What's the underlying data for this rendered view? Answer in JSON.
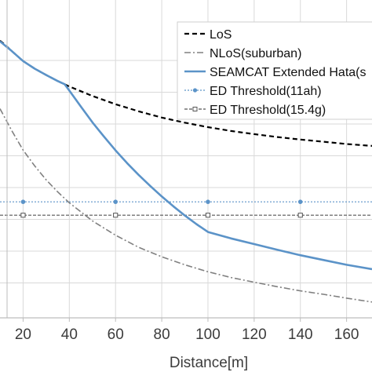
{
  "chart_data": {
    "type": "line",
    "xlabel": "Distance[m]",
    "x_ticks": [
      20,
      40,
      60,
      80,
      100,
      120,
      140,
      160
    ],
    "xlim": [
      10,
      171
    ],
    "ylim": [
      0,
      10
    ],
    "y_gridlines": [
      1.1,
      2.1,
      3.1,
      4.1,
      5.1,
      6.1,
      7.1,
      8.1
    ],
    "grid": true,
    "legend_position": "top-right",
    "series": [
      {
        "name": "LoS",
        "style": "dashed",
        "color": "#000000",
        "x": [
          10,
          12,
          15,
          20,
          25,
          30,
          35,
          40,
          50,
          60,
          70,
          80,
          90,
          100,
          110,
          120,
          130,
          140,
          150,
          160,
          171
        ],
        "y": [
          8.72,
          8.6,
          8.4,
          8.08,
          7.84,
          7.64,
          7.45,
          7.28,
          6.98,
          6.72,
          6.5,
          6.3,
          6.14,
          6.0,
          5.88,
          5.78,
          5.69,
          5.61,
          5.54,
          5.47,
          5.41
        ]
      },
      {
        "name": "NLoS(suburban)",
        "style": "dash-dot",
        "color": "#808080",
        "x": [
          10,
          15,
          20,
          25,
          30,
          35,
          40,
          50,
          60,
          70,
          80,
          90,
          100,
          110,
          120,
          130,
          140,
          150,
          160,
          171
        ],
        "y": [
          6.58,
          5.9,
          5.28,
          4.78,
          4.34,
          3.96,
          3.62,
          3.05,
          2.6,
          2.22,
          1.92,
          1.67,
          1.45,
          1.27,
          1.12,
          0.98,
          0.85,
          0.74,
          0.62,
          0.5
        ]
      },
      {
        "name": "SEAMCAT Extended Hata(s",
        "style": "solid",
        "color": "#5b93c8",
        "x": [
          10,
          15,
          20,
          25,
          30,
          35,
          38,
          40,
          45,
          50,
          55,
          60,
          65,
          70,
          75,
          80,
          85,
          90,
          95,
          100,
          110,
          120,
          130,
          140,
          150,
          160,
          171
        ],
        "y": [
          8.7,
          8.4,
          8.08,
          7.84,
          7.64,
          7.45,
          7.35,
          7.15,
          6.65,
          6.15,
          5.7,
          5.27,
          4.87,
          4.5,
          4.15,
          3.82,
          3.51,
          3.22,
          2.95,
          2.7,
          2.5,
          2.32,
          2.14,
          1.97,
          1.82,
          1.67,
          1.53
        ]
      },
      {
        "name": "ED Threshold(11ah)",
        "style": "dotted-marker-circle",
        "color": "#5b93c8",
        "x": [
          10,
          171
        ],
        "y": [
          3.65,
          3.65
        ],
        "marker_x": [
          20,
          60,
          100,
          140
        ]
      },
      {
        "name": "ED Threshold(15.4g)",
        "style": "dashed-marker-square",
        "color": "#555555",
        "x": [
          10,
          171
        ],
        "y": [
          3.23,
          3.23
        ],
        "marker_x": [
          20,
          60,
          100,
          140
        ]
      }
    ]
  },
  "colors": {
    "grid": "#d9d9d9",
    "axis": "#bdbdbd",
    "text": "#3c3c3c"
  }
}
